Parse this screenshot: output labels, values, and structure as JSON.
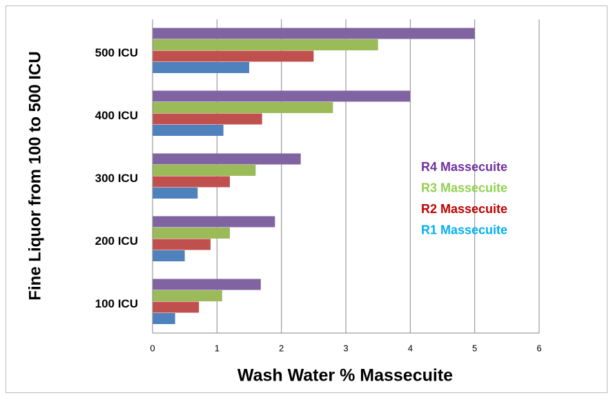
{
  "chart_data": {
    "type": "bar",
    "orientation": "horizontal",
    "x_label": "Wash Water % Massecuite",
    "y_label": "Fine Liquor from 100 to 500 ICU",
    "categories": [
      "100 ICU",
      "200 ICU",
      "300 ICU",
      "400 ICU",
      "500 ICU"
    ],
    "series": [
      {
        "name": "R1 Massecuite",
        "color": "#4f81bd",
        "label_color": "#00b0f0",
        "values": [
          0.35,
          0.5,
          0.7,
          1.1,
          1.5
        ]
      },
      {
        "name": "R2 Massecuite",
        "color": "#c0504d",
        "label_color": "#c00000",
        "values": [
          0.72,
          0.9,
          1.2,
          1.7,
          2.5
        ]
      },
      {
        "name": "R3 Massecuite",
        "color": "#9bbb59",
        "label_color": "#92d050",
        "values": [
          1.08,
          1.2,
          1.6,
          2.8,
          3.5
        ]
      },
      {
        "name": "R4 Massecuite",
        "color": "#8064a2",
        "label_color": "#7030a0",
        "values": [
          1.68,
          1.9,
          2.3,
          4.0,
          5.0
        ]
      }
    ],
    "xlim": [
      0,
      6
    ],
    "xticks": [
      0,
      1,
      2,
      3,
      4,
      5,
      6
    ],
    "grid": true
  }
}
